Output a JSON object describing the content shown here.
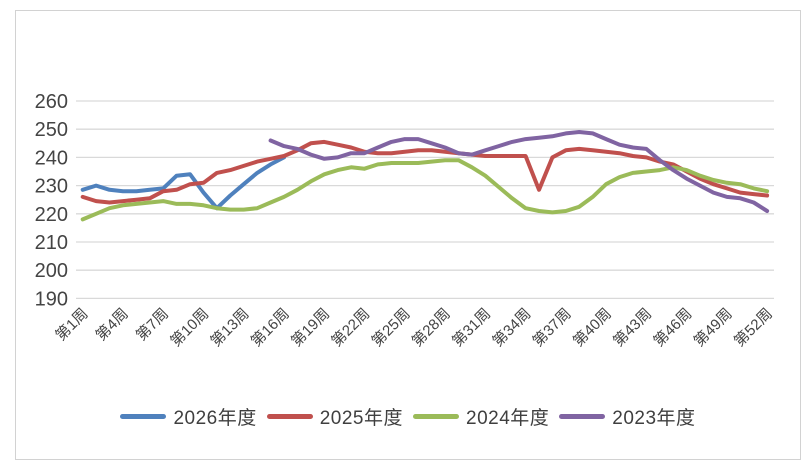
{
  "chart_data": {
    "type": "line",
    "title": "",
    "xlabel": "",
    "ylabel": "",
    "weeks": 52,
    "x_axis": {
      "tick_interval": 3,
      "tick_labels": [
        "第1周",
        "第4周",
        "第7周",
        "第10周",
        "第13周",
        "第16周",
        "第19周",
        "第22周",
        "第25周",
        "第28周",
        "第31周",
        "第34周",
        "第37周",
        "第40周",
        "第43周",
        "第46周",
        "第49周",
        "第52周"
      ]
    },
    "y_axis": {
      "ylim": [
        190,
        260
      ],
      "tick_step": 10,
      "tick_labels": [
        "260",
        "250",
        "240",
        "230",
        "220",
        "210",
        "200",
        "190"
      ]
    },
    "grid": true,
    "legend_position": "bottom",
    "series": [
      {
        "name": "2026年度",
        "color": "#4F81BD",
        "values": [
          228.5,
          230,
          228.5,
          228,
          228,
          228.5,
          229,
          233.5,
          234,
          227.5,
          222,
          226.5,
          230.5,
          234.5,
          237.5,
          240,
          null,
          null,
          null,
          null,
          null,
          null,
          null,
          null,
          null,
          null,
          null,
          null,
          null,
          null,
          null,
          null,
          null,
          null,
          null,
          null,
          null,
          null,
          null,
          null,
          null,
          null,
          null,
          null,
          null,
          null,
          null,
          null,
          null,
          null,
          null,
          null
        ]
      },
      {
        "name": "2025年度",
        "color": "#C0504D",
        "values": [
          226,
          224.5,
          224,
          224.5,
          225,
          225.5,
          228,
          228.5,
          230.5,
          231,
          234.5,
          235.5,
          237,
          238.5,
          239.5,
          240.5,
          242.5,
          245,
          245.5,
          244.5,
          243.5,
          242,
          241.5,
          241.5,
          242,
          242.5,
          242.5,
          242,
          241.5,
          241,
          240.5,
          240.5,
          240.5,
          240.5,
          228.5,
          240,
          242.5,
          243,
          242.5,
          242,
          241.5,
          240.5,
          240,
          238.5,
          237.5,
          235,
          232.5,
          230.5,
          229,
          227.5,
          227,
          226.5
        ]
      },
      {
        "name": "2024年度",
        "color": "#9BBB59",
        "values": [
          218,
          220,
          222,
          223,
          223.5,
          224,
          224.5,
          223.5,
          223.5,
          223,
          222,
          221.5,
          221.5,
          222,
          224,
          226,
          228.5,
          231.5,
          234,
          235.5,
          236.5,
          236,
          237.5,
          238,
          238,
          238,
          238.5,
          239,
          239,
          236.5,
          233.5,
          229.5,
          225.5,
          222,
          221,
          220.5,
          221,
          222.5,
          226,
          230.5,
          233,
          234.5,
          235,
          235.5,
          236.5,
          235.5,
          233.5,
          232,
          231,
          230.5,
          229,
          228
        ]
      },
      {
        "name": "2023年度",
        "color": "#8064A2",
        "values": [
          null,
          null,
          null,
          null,
          null,
          null,
          null,
          null,
          null,
          null,
          null,
          null,
          null,
          null,
          246,
          244,
          243,
          241,
          239.5,
          240,
          241.5,
          241.5,
          243.5,
          245.5,
          246.5,
          246.5,
          245,
          243.5,
          241.5,
          241,
          242.5,
          244,
          245.5,
          246.5,
          247,
          247.5,
          248.5,
          249,
          248.5,
          246.5,
          244.5,
          243.5,
          243,
          239,
          235.5,
          232.5,
          230,
          227.5,
          226,
          225.5,
          224,
          221
        ]
      }
    ]
  },
  "style": {
    "gridline_color": "#d9d9d9",
    "axis_text_color": "#444444",
    "frame_border_color": "#d2d2d2",
    "line_width": 4
  }
}
